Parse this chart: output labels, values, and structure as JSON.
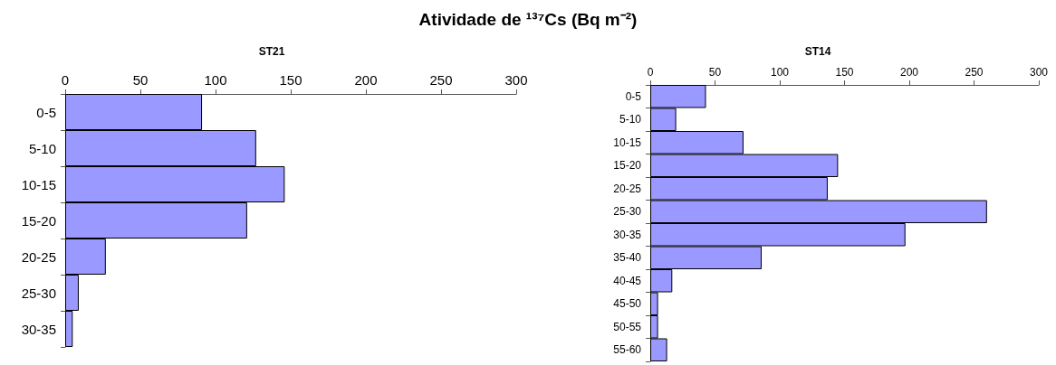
{
  "chart_data": [
    {
      "type": "bar",
      "orientation": "horizontal",
      "title": "ST21",
      "annotations": [
        "Atividade de ¹³⁷Cs (Bq m⁻²)"
      ],
      "categories": [
        "0-5",
        "5-10",
        "10-15",
        "15-20",
        "20-25",
        "25-30",
        "30-35"
      ],
      "values": [
        91,
        127,
        146,
        121,
        27,
        9,
        5
      ],
      "color": "#9999ff",
      "xlim": [
        0,
        300
      ],
      "xticks": [
        0,
        50,
        100,
        150,
        200,
        250,
        300
      ],
      "grid": false
    },
    {
      "type": "bar",
      "orientation": "horizontal",
      "title": "ST14",
      "categories": [
        "0-5",
        "5-10",
        "10-15",
        "15-20",
        "20-25",
        "25-30",
        "30-35",
        "35-40",
        "40-45",
        "45-50",
        "50-55",
        "55-60"
      ],
      "values": [
        43,
        20,
        72,
        145,
        137,
        260,
        197,
        86,
        17,
        6,
        6,
        13
      ],
      "color": "#9999ff",
      "xlim": [
        0,
        300
      ],
      "xticks": [
        0,
        50,
        100,
        150,
        200,
        250,
        300
      ],
      "grid": false
    }
  ]
}
